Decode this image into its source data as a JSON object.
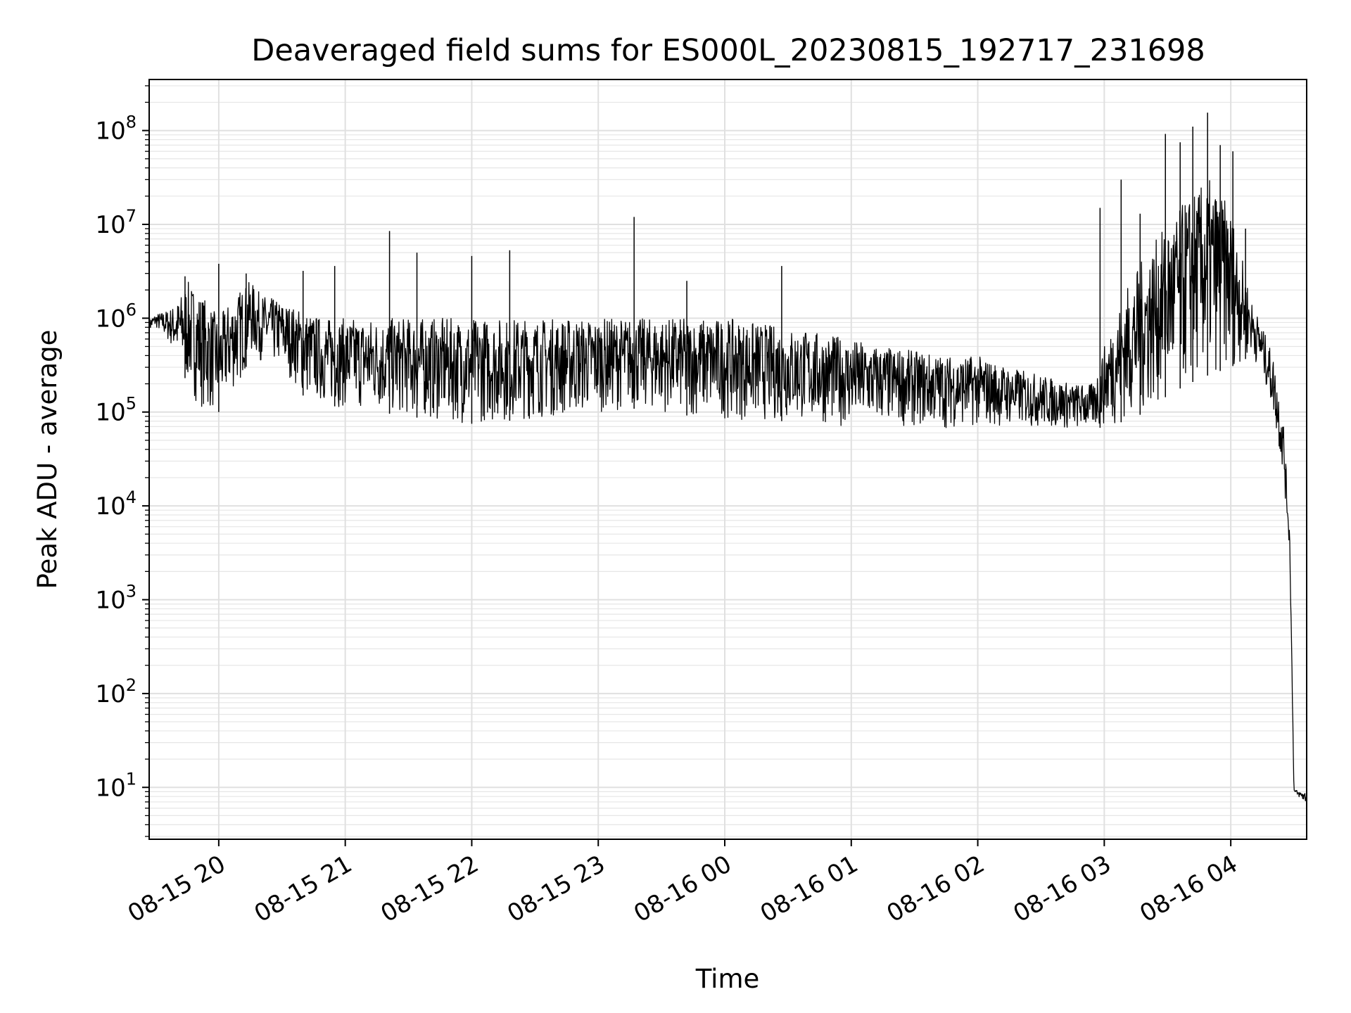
{
  "chart_data": {
    "type": "line",
    "title": "Deaveraged field sums for ES000L_20230815_192717_231698",
    "xlabel": "Time",
    "ylabel": "Peak ADU - average",
    "y_scale": "log",
    "ylim": [
      2.8,
      350000000
    ],
    "xlim": [
      "2023-08-15 19:27",
      "2023-08-16 04:36"
    ],
    "grid": true,
    "line_color": "#000000",
    "x_ticks": [
      "08-15 20",
      "08-15 21",
      "08-15 22",
      "08-15 23",
      "08-16 00",
      "08-16 01",
      "08-16 02",
      "08-16 03",
      "08-16 04"
    ],
    "x_tick_times": [
      "2023-08-15 20:00",
      "2023-08-15 21:00",
      "2023-08-15 22:00",
      "2023-08-15 23:00",
      "2023-08-16 00:00",
      "2023-08-16 01:00",
      "2023-08-16 02:00",
      "2023-08-16 03:00",
      "2023-08-16 04:00"
    ],
    "y_ticks": [
      {
        "value": 10,
        "base": "10",
        "exp": "1"
      },
      {
        "value": 100,
        "base": "10",
        "exp": "2"
      },
      {
        "value": 1000,
        "base": "10",
        "exp": "3"
      },
      {
        "value": 10000,
        "base": "10",
        "exp": "4"
      },
      {
        "value": 100000,
        "base": "10",
        "exp": "5"
      },
      {
        "value": 1000000,
        "base": "10",
        "exp": "6"
      },
      {
        "value": 10000000,
        "base": "10",
        "exp": "7"
      },
      {
        "value": 100000000,
        "base": "10",
        "exp": "8"
      }
    ],
    "series": [
      {
        "x": [
          "2023-08-15 19:27",
          "2023-08-15 19:30",
          "2023-08-15 19:35",
          "2023-08-15 19:40",
          "2023-08-15 19:45",
          "2023-08-15 19:50",
          "2023-08-15 19:55",
          "2023-08-15 20:00",
          "2023-08-15 20:05",
          "2023-08-15 20:10",
          "2023-08-15 20:15",
          "2023-08-15 20:20",
          "2023-08-15 20:30",
          "2023-08-15 20:40",
          "2023-08-15 20:50",
          "2023-08-15 21:00",
          "2023-08-15 21:15",
          "2023-08-15 21:30",
          "2023-08-15 21:45",
          "2023-08-15 22:00",
          "2023-08-15 22:15",
          "2023-08-15 22:30",
          "2023-08-15 22:45",
          "2023-08-15 23:00",
          "2023-08-15 23:15",
          "2023-08-15 23:30",
          "2023-08-15 23:45",
          "2023-08-16 00:00",
          "2023-08-16 00:15",
          "2023-08-16 00:30",
          "2023-08-16 00:45",
          "2023-08-16 01:00",
          "2023-08-16 01:15",
          "2023-08-16 01:30",
          "2023-08-16 01:45",
          "2023-08-16 02:00",
          "2023-08-16 02:15",
          "2023-08-16 02:30",
          "2023-08-16 02:45",
          "2023-08-16 02:55",
          "2023-08-16 03:00",
          "2023-08-16 03:10",
          "2023-08-16 03:20",
          "2023-08-16 03:30",
          "2023-08-16 03:40",
          "2023-08-16 03:50",
          "2023-08-16 04:00",
          "2023-08-16 04:10",
          "2023-08-16 04:15",
          "2023-08-16 04:20",
          "2023-08-16 04:25",
          "2023-08-16 04:28",
          "2023-08-16 04:30",
          "2023-08-16 04:32",
          "2023-08-16 04:36"
        ],
        "y_low": [
          700000,
          800000,
          600000,
          400000,
          200000,
          120000,
          100000,
          100000,
          150000,
          200000,
          400000,
          350000,
          300000,
          150000,
          120000,
          110000,
          100000,
          90000,
          80000,
          75000,
          80000,
          85000,
          90000,
          100000,
          110000,
          100000,
          90000,
          85000,
          80000,
          80000,
          75000,
          70000,
          72000,
          70000,
          68000,
          70000,
          70000,
          68000,
          65000,
          65000,
          70000,
          80000,
          100000,
          150000,
          200000,
          250000,
          300000,
          400000,
          250000,
          100000,
          20000,
          3000,
          8,
          8,
          6.5
        ],
        "y_high": [
          1000000,
          1100000,
          1200000,
          1400000,
          2500000,
          2000000,
          1500000,
          1000000,
          1500000,
          2000000,
          2500000,
          1800000,
          1500000,
          1200000,
          1000000,
          1000000,
          1000000,
          1000000,
          1000000,
          1000000,
          1000000,
          1000000,
          1000000,
          1000000,
          1000000,
          1000000,
          1000000,
          1000000,
          900000,
          800000,
          700000,
          600000,
          500000,
          450000,
          400000,
          400000,
          300000,
          250000,
          200000,
          200000,
          500000,
          2000000,
          5000000,
          10000000,
          20000000,
          30000000,
          15000000,
          1500000,
          800000,
          400000,
          80000,
          5000,
          10,
          9,
          9
        ],
        "spikes": [
          {
            "x": "2023-08-15 19:44",
            "y": 2800000
          },
          {
            "x": "2023-08-15 20:00",
            "y": 3800000
          },
          {
            "x": "2023-08-15 20:13",
            "y": 3000000
          },
          {
            "x": "2023-08-15 20:40",
            "y": 3200000
          },
          {
            "x": "2023-08-15 20:55",
            "y": 3600000
          },
          {
            "x": "2023-08-15 21:21",
            "y": 8500000
          },
          {
            "x": "2023-08-15 21:34",
            "y": 5000000
          },
          {
            "x": "2023-08-15 22:00",
            "y": 4600000
          },
          {
            "x": "2023-08-15 22:18",
            "y": 5300000
          },
          {
            "x": "2023-08-15 23:17",
            "y": 12000000
          },
          {
            "x": "2023-08-15 23:42",
            "y": 2500000
          },
          {
            "x": "2023-08-16 00:27",
            "y": 3600000
          },
          {
            "x": "2023-08-16 02:58",
            "y": 15000000
          },
          {
            "x": "2023-08-16 03:08",
            "y": 30000000
          },
          {
            "x": "2023-08-16 03:17",
            "y": 13000000
          },
          {
            "x": "2023-08-16 03:29",
            "y": 92000000
          },
          {
            "x": "2023-08-16 03:36",
            "y": 75000000
          },
          {
            "x": "2023-08-16 03:42",
            "y": 110000000
          },
          {
            "x": "2023-08-16 03:49",
            "y": 155000000
          },
          {
            "x": "2023-08-16 03:55",
            "y": 70000000
          },
          {
            "x": "2023-08-16 04:01",
            "y": 60000000
          },
          {
            "x": "2023-08-16 04:07",
            "y": 9000000
          }
        ]
      }
    ]
  }
}
